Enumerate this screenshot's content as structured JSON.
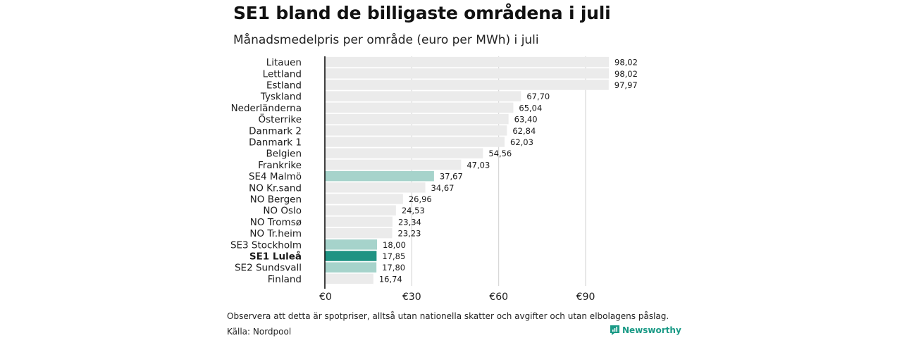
{
  "header": {
    "title": "SE1 bland de billigaste områdena i juli",
    "subtitle": "Månadsmedelpris per område (euro per MWh) i juli"
  },
  "footer": {
    "note": "Observera att detta är spotpriser, alltså utan nationella skatter och avgifter och utan elbolagens påslag.",
    "source": "Källa: Nordpool",
    "brand": "Newsworthy"
  },
  "colors": {
    "default_bar": "#ebebeb",
    "se_bar": "#a6d3cb",
    "highlight_bar": "#1f9383",
    "gridline": "#d0d0d0",
    "axis": "#111111",
    "brand": "#1a9a86"
  },
  "chart_data": {
    "type": "bar",
    "orientation": "horizontal",
    "title": "SE1 bland de billigaste områdena i juli",
    "subtitle": "Månadsmedelpris per område (euro per MWh) i juli",
    "xlabel": "",
    "ylabel": "",
    "xlim": [
      0,
      98.02
    ],
    "xticks": [
      0,
      30,
      60,
      90
    ],
    "xtick_labels": [
      "€0",
      "€30",
      "€60",
      "€90"
    ],
    "grid": true,
    "categories": [
      "Litauen",
      "Lettland",
      "Estland",
      "Tyskland",
      "Nederländerna",
      "Österrike",
      "Danmark  2",
      "Danmark  1",
      "Belgien",
      "Frankrike",
      "SE4  Malmö",
      "NO Kr.sand",
      "NO Bergen",
      "NO Oslo",
      "NO Tromsø",
      "NO Tr.heim",
      "SE3  Stockholm",
      "SE1 Luleå",
      "SE2  Sundsvall",
      "Finland"
    ],
    "values": [
      98.02,
      98.02,
      97.97,
      67.7,
      65.04,
      63.4,
      62.84,
      62.03,
      54.56,
      47.03,
      37.67,
      34.67,
      26.96,
      24.53,
      23.34,
      23.23,
      18.0,
      17.85,
      17.8,
      16.74
    ],
    "value_labels": [
      "98,02",
      "98,02",
      "97,97",
      "67,70",
      "65,04",
      "63,40",
      "62,84",
      "62,03",
      "54,56",
      "47,03",
      "37,67",
      "34,67",
      "26,96",
      "24,53",
      "23,34",
      "23,23",
      "18,00",
      "17,85",
      "17,80",
      "16,74"
    ],
    "bar_style": [
      "default",
      "default",
      "default",
      "default",
      "default",
      "default",
      "default",
      "default",
      "default",
      "default",
      "se",
      "default",
      "default",
      "default",
      "default",
      "default",
      "se",
      "highlight",
      "se",
      "default"
    ]
  }
}
